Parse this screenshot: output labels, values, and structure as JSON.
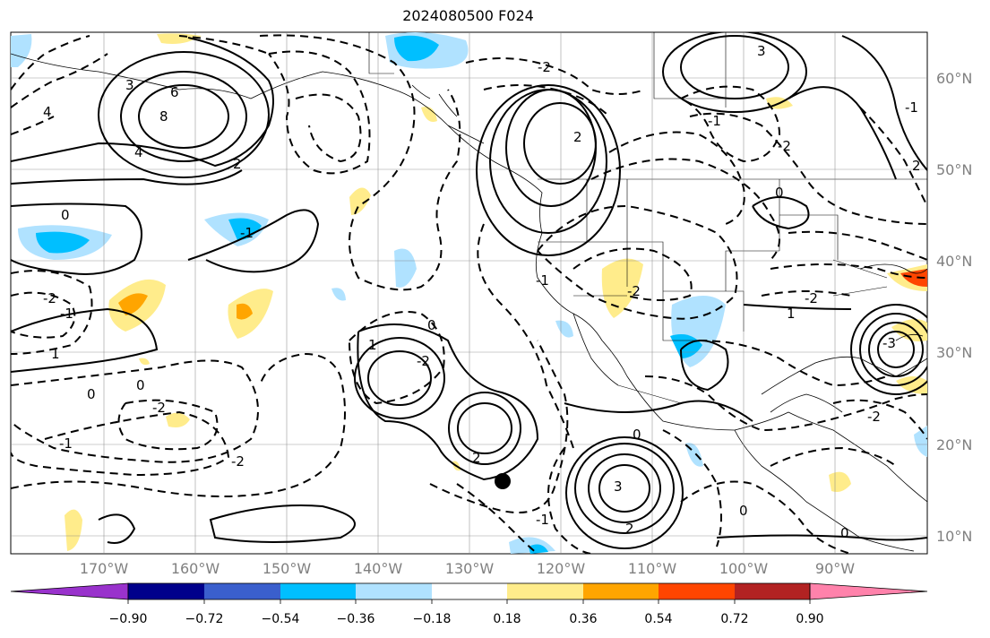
{
  "title": "2024080500 F024",
  "map": {
    "lon_range": [
      -180,
      -80
    ],
    "lat_range": [
      8,
      65
    ],
    "lat_labels": [
      "60°N",
      "50°N",
      "40°N",
      "30°N",
      "20°N",
      "10°N"
    ],
    "lon_labels": [
      "170°W",
      "160°W",
      "150°W",
      "140°W",
      "130°W",
      "120°W",
      "110°W",
      "100°W",
      "90°W"
    ],
    "contour_labels": [
      "4",
      "6",
      "8",
      "2",
      "3",
      "4",
      "-1",
      "0",
      "-2",
      "1",
      "0",
      "-1",
      "-2",
      "-2",
      "0",
      "-1",
      "-2",
      "1",
      "2",
      "0",
      "2",
      "-2",
      "-1",
      "3",
      "2",
      "-1",
      "0",
      "0",
      "-2",
      "-2",
      "1",
      "-2",
      "-2",
      "-1",
      "3",
      "0",
      "-3",
      "0",
      "2",
      "-1"
    ],
    "marker": {
      "label": "storm-center",
      "lon": -126,
      "lat": 16
    }
  },
  "colorbar": {
    "tick_labels": [
      "−0.90",
      "−0.72",
      "−0.54",
      "−0.36",
      "−0.18",
      "0.18",
      "0.36",
      "0.54",
      "0.72",
      "0.90"
    ],
    "colors": [
      "#9932cc",
      "#00008b",
      "#3a5fcd",
      "#00bfff",
      "#b0e2ff",
      "#ffffff",
      "#ffec8b",
      "#ffa500",
      "#ff4500",
      "#b22222",
      "#ff82ab"
    ]
  }
}
